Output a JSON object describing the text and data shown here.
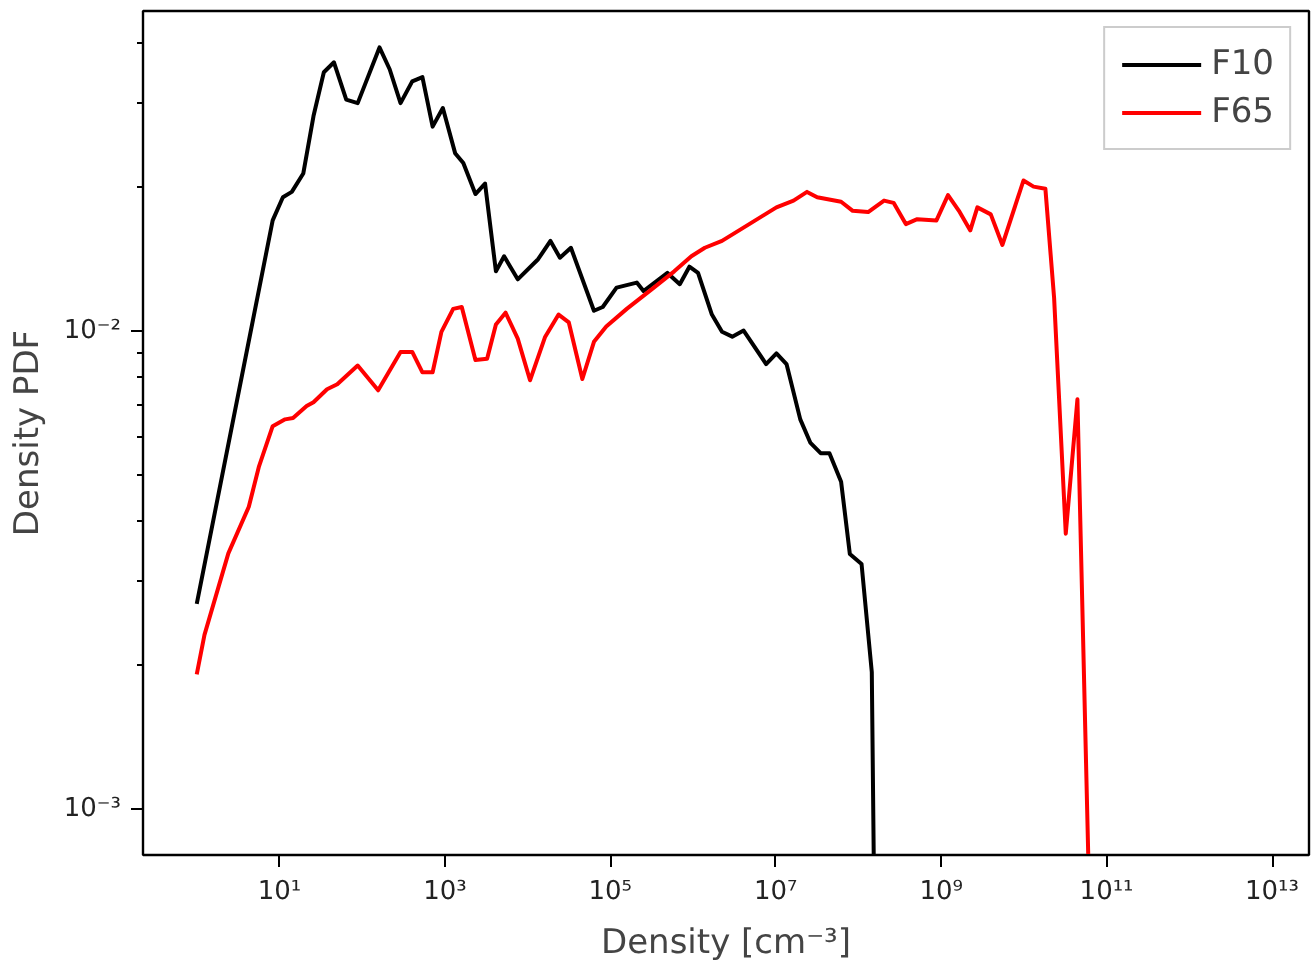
{
  "chart_data": {
    "type": "line",
    "xlabel": "Density [cm⁻³]",
    "ylabel": "Density PDF",
    "log": "xy",
    "grid": false,
    "legend": "top right",
    "marker": "none",
    "line_style": "solid",
    "xlim": [
      0.224,
      28000000000000.0
    ],
    "ylim": [
      0.0008,
      0.0466
    ],
    "xticks": [
      {
        "value": 10,
        "label": "10¹"
      },
      {
        "value": 1000,
        "label": "10³"
      },
      {
        "value": 100000,
        "label": "10⁵"
      },
      {
        "value": 10000000,
        "label": "10⁷"
      },
      {
        "value": 1000000000,
        "label": "10⁹"
      },
      {
        "value": 100000000000,
        "label": "10¹¹"
      },
      {
        "value": 10000000000000,
        "label": "10¹³"
      }
    ],
    "yticks": [
      {
        "value": 0.001,
        "label": "10⁻³"
      },
      {
        "value": 0.002,
        "label": null
      },
      {
        "value": 0.003,
        "label": null
      },
      {
        "value": 0.004,
        "label": null
      },
      {
        "value": 0.005,
        "label": null
      },
      {
        "value": 0.006,
        "label": null
      },
      {
        "value": 0.007,
        "label": null
      },
      {
        "value": 0.008,
        "label": null
      },
      {
        "value": 0.009,
        "label": null
      },
      {
        "value": 0.01,
        "label": "10⁻²"
      },
      {
        "value": 0.02,
        "label": null
      },
      {
        "value": 0.03,
        "label": null
      },
      {
        "value": 0.04,
        "label": null
      }
    ],
    "series": [
      {
        "name": "F10",
        "color": "#000000",
        "x": [
          1.0,
          8.28,
          11.0,
          14.1,
          19.4,
          25.8,
          34.4,
          45.6,
          64.2,
          88.3,
          162,
          215,
          291,
          403,
          535,
          711,
          945,
          1330,
          1670,
          2340,
          3060,
          4140,
          5200,
          7600,
          13400,
          18900,
          24600,
          33400,
          63400,
          81000,
          119000,
          209000,
          252000,
          491000,
          692000,
          904000,
          1150000,
          1690000,
          2240000,
          2980000,
          4090000,
          7650000,
          10200000,
          13500000,
          19800000,
          26300000,
          34900000,
          44600000,
          61700000,
          78700000,
          109000000,
          145000000,
          153000000
        ],
        "values": [
          0.00268,
          0.017,
          0.019,
          0.0195,
          0.0213,
          0.0281,
          0.0347,
          0.0364,
          0.0304,
          0.0299,
          0.0391,
          0.0352,
          0.0299,
          0.0332,
          0.0339,
          0.0267,
          0.0292,
          0.0235,
          0.0224,
          0.0193,
          0.0203,
          0.0133,
          0.0143,
          0.0128,
          0.0141,
          0.0154,
          0.0142,
          0.0149,
          0.011,
          0.0112,
          0.0123,
          0.0126,
          0.0121,
          0.0132,
          0.0125,
          0.0136,
          0.0132,
          0.0108,
          0.00994,
          0.00971,
          0.01,
          0.00851,
          0.00896,
          0.00851,
          0.00652,
          0.00582,
          0.00554,
          0.00554,
          0.00483,
          0.00341,
          0.00325,
          0.00193,
          0.0008
        ]
      },
      {
        "name": "F65",
        "color": "#ff0000",
        "x": [
          1.0,
          1.24,
          2.41,
          4.26,
          5.66,
          8.28,
          11.7,
          14.6,
          21.3,
          25.8,
          37.6,
          50.0,
          88.3,
          156,
          291,
          403,
          535,
          711,
          908,
          1260,
          1600,
          2340,
          3240,
          4140,
          5410,
          7600,
          10700,
          16200,
          23700,
          31500,
          45900,
          63400,
          89300,
          158000,
          336000,
          593000,
          955000,
          1390000,
          2240000,
          4780000,
          10200000,
          16400000,
          23900000,
          31700000,
          61700000,
          85300000,
          131000000,
          204000000,
          266000000,
          374000000,
          514000000,
          877000000,
          1210000000,
          1640000000,
          2250000000,
          2740000000,
          3980000000,
          5500000000,
          9890000000,
          13100000000,
          18200000000,
          23200000000,
          32100000000,
          44400000000,
          60000000000
        ],
        "values": [
          0.00191,
          0.00231,
          0.00342,
          0.00428,
          0.0052,
          0.00631,
          0.00652,
          0.00656,
          0.00695,
          0.00708,
          0.00754,
          0.00772,
          0.00845,
          0.0075,
          0.00902,
          0.00902,
          0.00818,
          0.00818,
          0.00994,
          0.0111,
          0.0112,
          0.00868,
          0.00873,
          0.0103,
          0.0109,
          0.00962,
          0.00787,
          0.00968,
          0.0108,
          0.0104,
          0.00792,
          0.00947,
          0.0102,
          0.0111,
          0.0123,
          0.0133,
          0.0143,
          0.0149,
          0.0154,
          0.0167,
          0.0181,
          0.0187,
          0.0195,
          0.019,
          0.0186,
          0.0178,
          0.0177,
          0.0187,
          0.0185,
          0.0167,
          0.0171,
          0.017,
          0.0192,
          0.0178,
          0.0162,
          0.0181,
          0.0175,
          0.0151,
          0.0206,
          0.02,
          0.0198,
          0.0117,
          0.00376,
          0.00718,
          0.0008
        ]
      }
    ]
  }
}
